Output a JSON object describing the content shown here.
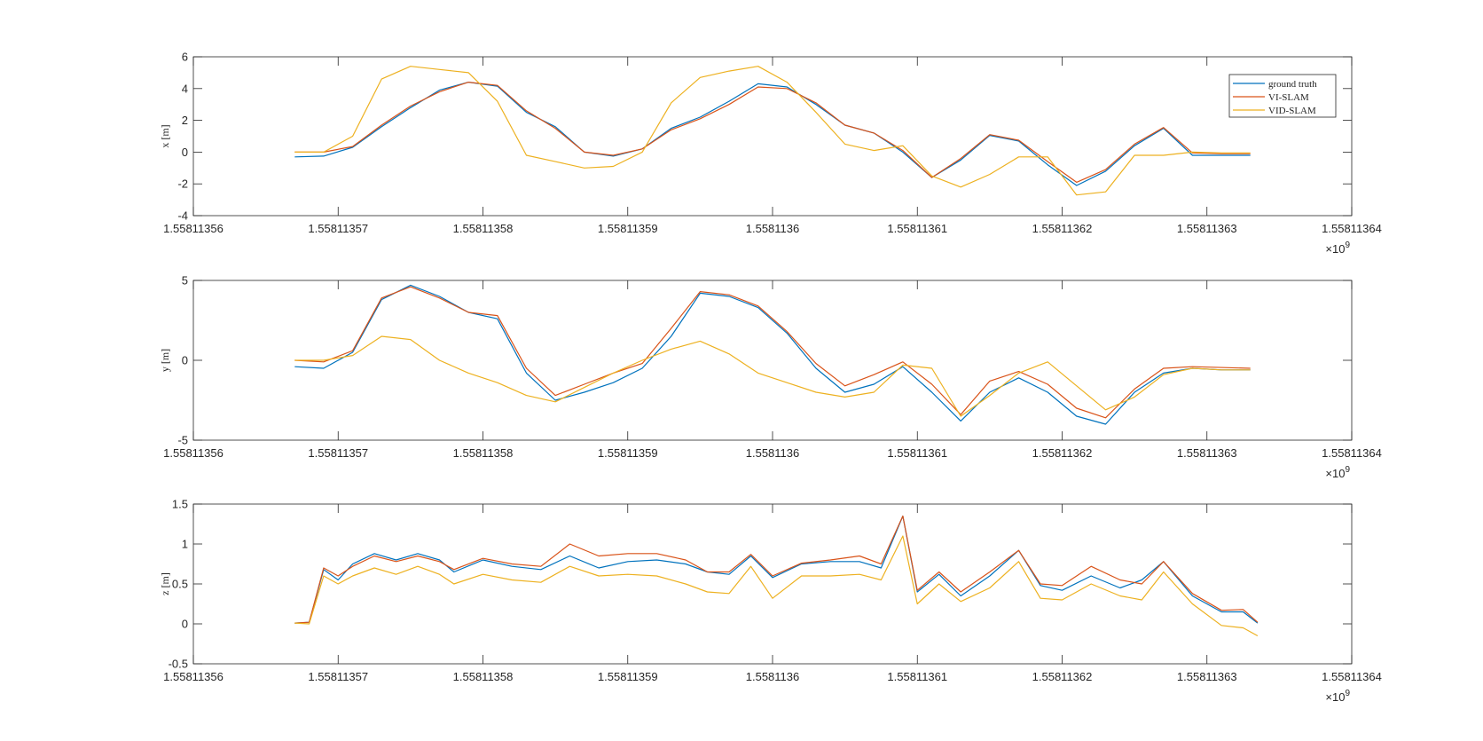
{
  "figure": {
    "colors": {
      "ground_truth": "#0072BD",
      "vi_slam": "#D95319",
      "vid_slam": "#EDB120",
      "axes": "#262626"
    }
  },
  "legend": {
    "entries": [
      "ground truth",
      "VI-SLAM",
      "VID-SLAM"
    ],
    "placement": "top-right of first subplot"
  },
  "chart_data": [
    {
      "type": "line",
      "ylabel": "x [m]",
      "xlim": [
        1.55811356,
        1.55811364
      ],
      "ylim": [
        -4,
        6
      ],
      "grid": false,
      "x_exponent": "×10",
      "x_exponent_power": "9",
      "x_ticks": [
        1.55811356,
        1.55811357,
        1.55811358,
        1.55811359,
        1.5581136,
        1.55811361,
        1.55811362,
        1.55811363,
        1.55811364
      ],
      "x_tick_labels": [
        "1.55811356",
        "1.55811357",
        "1.55811358",
        "1.55811359",
        "1.5581136",
        "1.55811361",
        "1.55811362",
        "1.55811363",
        "1.55811364"
      ],
      "y_ticks": [
        -4,
        -2,
        0,
        2,
        4,
        6
      ],
      "y_tick_labels": [
        "-4",
        "-2",
        "0",
        "2",
        "4",
        "6"
      ],
      "series": [
        {
          "name": "ground truth",
          "x": [
            1.558113567,
            1.558113569,
            1.558113571,
            1.558113573,
            1.558113575,
            1.558113577,
            1.558113579,
            1.558113581,
            1.558113583,
            1.558113585,
            1.558113587,
            1.558113589,
            1.558113591,
            1.558113593,
            1.558113595,
            1.558113597,
            1.558113599,
            1.558113601,
            1.558113603,
            1.558113605,
            1.558113607,
            1.558113609,
            1.558113611,
            1.558113613,
            1.558113615,
            1.558113617,
            1.558113619,
            1.558113621,
            1.558113623,
            1.558113625,
            1.558113627,
            1.558113629,
            1.558113631,
            1.558113633
          ],
          "y": [
            -0.3,
            -0.25,
            0.3,
            1.6,
            2.8,
            3.9,
            4.4,
            4.15,
            2.5,
            1.6,
            0.0,
            -0.25,
            0.2,
            1.5,
            2.2,
            3.2,
            4.3,
            4.1,
            3.0,
            1.7,
            1.2,
            0.0,
            -1.6,
            -0.5,
            1.05,
            0.7,
            -0.8,
            -2.1,
            -1.2,
            0.4,
            1.5,
            -0.2,
            -0.2,
            -0.2
          ]
        },
        {
          "name": "VI-SLAM",
          "x": [
            1.558113567,
            1.558113569,
            1.558113571,
            1.558113573,
            1.558113575,
            1.558113577,
            1.558113579,
            1.558113581,
            1.558113583,
            1.558113585,
            1.558113587,
            1.558113589,
            1.558113591,
            1.558113593,
            1.558113595,
            1.558113597,
            1.558113599,
            1.558113601,
            1.558113603,
            1.558113605,
            1.558113607,
            1.558113609,
            1.558113611,
            1.558113613,
            1.558113615,
            1.558113617,
            1.558113619,
            1.558113621,
            1.558113623,
            1.558113625,
            1.558113627,
            1.558113629,
            1.558113631,
            1.558113633
          ],
          "y": [
            0.0,
            0.0,
            0.35,
            1.7,
            2.9,
            3.8,
            4.4,
            4.2,
            2.6,
            1.5,
            0.0,
            -0.2,
            0.2,
            1.4,
            2.1,
            3.0,
            4.1,
            4.0,
            3.1,
            1.7,
            1.2,
            0.1,
            -1.6,
            -0.4,
            1.1,
            0.75,
            -0.6,
            -1.9,
            -1.1,
            0.5,
            1.55,
            -0.05,
            -0.1,
            -0.1
          ]
        },
        {
          "name": "VID-SLAM",
          "x": [
            1.558113567,
            1.558113569,
            1.558113571,
            1.558113573,
            1.558113575,
            1.558113577,
            1.558113579,
            1.558113581,
            1.558113583,
            1.558113585,
            1.558113587,
            1.558113589,
            1.558113591,
            1.558113593,
            1.558113595,
            1.558113597,
            1.558113599,
            1.558113601,
            1.558113603,
            1.558113605,
            1.558113607,
            1.558113609,
            1.558113611,
            1.558113613,
            1.558113615,
            1.558113617,
            1.558113619,
            1.558113621,
            1.558113623,
            1.558113625,
            1.558113627,
            1.558113629,
            1.558113631,
            1.558113633
          ],
          "y": [
            0.0,
            0.0,
            1.0,
            4.6,
            5.4,
            5.2,
            5.0,
            3.2,
            -0.2,
            -0.6,
            -1.0,
            -0.9,
            0.0,
            3.1,
            4.7,
            5.1,
            5.4,
            4.4,
            2.5,
            0.5,
            0.1,
            0.4,
            -1.5,
            -2.2,
            -1.4,
            -0.3,
            -0.3,
            -2.7,
            -2.5,
            -0.2,
            -0.2,
            0.0,
            -0.05,
            -0.05
          ]
        }
      ]
    },
    {
      "type": "line",
      "ylabel": "y [m]",
      "xlim": [
        1.55811356,
        1.55811364
      ],
      "ylim": [
        -5,
        5
      ],
      "grid": false,
      "x_exponent": "×10",
      "x_exponent_power": "9",
      "x_ticks": [
        1.55811356,
        1.55811357,
        1.55811358,
        1.55811359,
        1.5581136,
        1.55811361,
        1.55811362,
        1.55811363,
        1.55811364
      ],
      "x_tick_labels": [
        "1.55811356",
        "1.55811357",
        "1.55811358",
        "1.55811359",
        "1.5581136",
        "1.55811361",
        "1.55811362",
        "1.55811363",
        "1.55811364"
      ],
      "y_ticks": [
        -5,
        0,
        5
      ],
      "y_tick_labels": [
        "-5",
        "0",
        "5"
      ],
      "series": [
        {
          "name": "ground truth",
          "x": [
            1.558113567,
            1.558113569,
            1.558113571,
            1.558113573,
            1.558113575,
            1.558113577,
            1.558113579,
            1.558113581,
            1.558113583,
            1.558113585,
            1.558113587,
            1.558113589,
            1.558113591,
            1.558113593,
            1.558113595,
            1.558113597,
            1.558113599,
            1.558113601,
            1.558113603,
            1.558113605,
            1.558113607,
            1.558113609,
            1.558113611,
            1.558113613,
            1.558113615,
            1.558113617,
            1.558113619,
            1.558113621,
            1.558113623,
            1.558113625,
            1.558113627,
            1.558113629,
            1.558113631,
            1.558113633
          ],
          "y": [
            -0.4,
            -0.5,
            0.5,
            3.8,
            4.7,
            4.0,
            3.0,
            2.6,
            -0.8,
            -2.5,
            -2.0,
            -1.4,
            -0.5,
            1.5,
            4.2,
            4.0,
            3.3,
            1.7,
            -0.5,
            -2.0,
            -1.5,
            -0.4,
            -2.0,
            -3.8,
            -2.0,
            -1.1,
            -2.0,
            -3.5,
            -4.0,
            -2.0,
            -0.8,
            -0.5,
            -0.6,
            -0.6
          ]
        },
        {
          "name": "VI-SLAM",
          "x": [
            1.558113567,
            1.558113569,
            1.558113571,
            1.558113573,
            1.558113575,
            1.558113577,
            1.558113579,
            1.558113581,
            1.558113583,
            1.558113585,
            1.558113587,
            1.558113589,
            1.558113591,
            1.558113593,
            1.558113595,
            1.558113597,
            1.558113599,
            1.558113601,
            1.558113603,
            1.558113605,
            1.558113607,
            1.558113609,
            1.558113611,
            1.558113613,
            1.558113615,
            1.558113617,
            1.558113619,
            1.558113621,
            1.558113623,
            1.558113625,
            1.558113627,
            1.558113629,
            1.558113633
          ],
          "y": [
            0.0,
            -0.1,
            0.6,
            3.9,
            4.6,
            3.9,
            3.0,
            2.8,
            -0.5,
            -2.2,
            -1.5,
            -0.8,
            -0.2,
            2.0,
            4.3,
            4.1,
            3.4,
            1.8,
            -0.2,
            -1.6,
            -0.9,
            -0.1,
            -1.5,
            -3.4,
            -1.3,
            -0.7,
            -1.5,
            -3.0,
            -3.6,
            -1.8,
            -0.5,
            -0.4,
            -0.5
          ]
        },
        {
          "name": "VID-SLAM",
          "x": [
            1.558113567,
            1.558113569,
            1.558113571,
            1.558113573,
            1.558113575,
            1.558113577,
            1.558113579,
            1.558113581,
            1.558113583,
            1.558113585,
            1.558113587,
            1.558113589,
            1.558113591,
            1.558113593,
            1.558113595,
            1.558113597,
            1.558113599,
            1.558113601,
            1.558113603,
            1.558113605,
            1.558113607,
            1.558113609,
            1.558113611,
            1.558113613,
            1.558113615,
            1.558113617,
            1.558113619,
            1.558113621,
            1.558113623,
            1.558113625,
            1.558113627,
            1.558113629,
            1.558113631,
            1.558113633
          ],
          "y": [
            0.0,
            0.0,
            0.3,
            1.5,
            1.3,
            0.0,
            -0.8,
            -1.4,
            -2.2,
            -2.6,
            -1.7,
            -0.8,
            0.0,
            0.7,
            1.2,
            0.4,
            -0.8,
            -1.4,
            -2.0,
            -2.3,
            -2.0,
            -0.3,
            -0.5,
            -3.5,
            -2.2,
            -0.8,
            -0.1,
            -1.6,
            -3.1,
            -2.3,
            -0.9,
            -0.5,
            -0.6,
            -0.6
          ]
        }
      ]
    },
    {
      "type": "line",
      "ylabel": "z [m]",
      "xlim": [
        1.55811356,
        1.55811364
      ],
      "ylim": [
        -0.5,
        1.5
      ],
      "grid": false,
      "x_exponent": "×10",
      "x_exponent_power": "9",
      "x_ticks": [
        1.55811356,
        1.55811357,
        1.55811358,
        1.55811359,
        1.5581136,
        1.55811361,
        1.55811362,
        1.55811363,
        1.55811364
      ],
      "x_tick_labels": [
        "1.55811356",
        "1.55811357",
        "1.55811358",
        "1.55811359",
        "1.5581136",
        "1.55811361",
        "1.55811362",
        "1.55811363",
        "1.55811364"
      ],
      "y_ticks": [
        -0.5,
        0,
        0.5,
        1,
        1.5
      ],
      "y_tick_labels": [
        "-0.5",
        "0",
        "0.5",
        "1",
        "1.5"
      ],
      "series": [
        {
          "name": "ground truth",
          "x": [
            1.558113567,
            1.558113568,
            1.558113569,
            1.55811357,
            1.558113571,
            1.5581135725,
            1.558113574,
            1.5581135755,
            1.558113577,
            1.558113578,
            1.55811358,
            1.558113582,
            1.558113584,
            1.558113586,
            1.558113588,
            1.55811359,
            1.558113592,
            1.558113594,
            1.5581135955,
            1.558113597,
            1.5581135985,
            1.5581136,
            1.558113602,
            1.558113604,
            1.558113606,
            1.5581136075,
            1.558113609,
            1.55811361,
            1.5581136115,
            1.558113613,
            1.558113615,
            1.558113617,
            1.5581136185,
            1.55811362,
            1.558113622,
            1.558113624,
            1.5581136255,
            1.558113627,
            1.558113629,
            1.558113631,
            1.5581136325,
            1.5581136335
          ],
          "y": [
            0.01,
            0.02,
            0.68,
            0.55,
            0.75,
            0.88,
            0.8,
            0.88,
            0.8,
            0.65,
            0.8,
            0.72,
            0.68,
            0.85,
            0.7,
            0.78,
            0.8,
            0.75,
            0.65,
            0.62,
            0.85,
            0.58,
            0.75,
            0.78,
            0.78,
            0.7,
            1.35,
            0.4,
            0.62,
            0.35,
            0.6,
            0.92,
            0.48,
            0.42,
            0.6,
            0.45,
            0.55,
            0.78,
            0.35,
            0.15,
            0.15,
            0.01
          ]
        },
        {
          "name": "VI-SLAM",
          "x": [
            1.558113567,
            1.558113568,
            1.558113569,
            1.55811357,
            1.558113571,
            1.5581135725,
            1.558113574,
            1.5581135755,
            1.558113577,
            1.558113578,
            1.55811358,
            1.558113582,
            1.558113584,
            1.558113586,
            1.558113588,
            1.55811359,
            1.558113592,
            1.558113594,
            1.5581135955,
            1.558113597,
            1.5581135985,
            1.5581136,
            1.558113602,
            1.558113604,
            1.558113606,
            1.5581136075,
            1.558113609,
            1.55811361,
            1.5581136115,
            1.558113613,
            1.558113615,
            1.558113617,
            1.5581136185,
            1.55811362,
            1.558113622,
            1.558113624,
            1.5581136255,
            1.558113627,
            1.558113629,
            1.558113631,
            1.5581136325,
            1.5581136335
          ],
          "y": [
            0.01,
            0.02,
            0.7,
            0.6,
            0.72,
            0.85,
            0.78,
            0.85,
            0.78,
            0.68,
            0.82,
            0.75,
            0.72,
            1.0,
            0.85,
            0.88,
            0.88,
            0.8,
            0.65,
            0.65,
            0.87,
            0.6,
            0.76,
            0.8,
            0.85,
            0.75,
            1.35,
            0.42,
            0.65,
            0.4,
            0.65,
            0.92,
            0.5,
            0.48,
            0.72,
            0.55,
            0.5,
            0.78,
            0.38,
            0.17,
            0.18,
            0.02
          ]
        },
        {
          "name": "VID-SLAM",
          "x": [
            1.558113567,
            1.558113568,
            1.558113569,
            1.55811357,
            1.558113571,
            1.5581135725,
            1.558113574,
            1.5581135755,
            1.558113577,
            1.558113578,
            1.55811358,
            1.558113582,
            1.558113584,
            1.558113586,
            1.558113588,
            1.55811359,
            1.558113592,
            1.558113594,
            1.5581135955,
            1.558113597,
            1.5581135985,
            1.5581136,
            1.558113602,
            1.558113604,
            1.558113606,
            1.5581136075,
            1.558113609,
            1.55811361,
            1.5581136115,
            1.558113613,
            1.558113615,
            1.558113617,
            1.5581136185,
            1.55811362,
            1.558113622,
            1.558113624,
            1.5581136255,
            1.558113627,
            1.558113629,
            1.558113631,
            1.5581136325,
            1.5581136335
          ],
          "y": [
            0.01,
            0.0,
            0.6,
            0.5,
            0.6,
            0.7,
            0.62,
            0.72,
            0.62,
            0.5,
            0.62,
            0.55,
            0.52,
            0.72,
            0.6,
            0.62,
            0.6,
            0.5,
            0.4,
            0.38,
            0.72,
            0.32,
            0.6,
            0.6,
            0.62,
            0.55,
            1.1,
            0.25,
            0.5,
            0.28,
            0.45,
            0.78,
            0.32,
            0.3,
            0.5,
            0.35,
            0.3,
            0.65,
            0.25,
            -0.02,
            -0.05,
            -0.15
          ]
        }
      ]
    }
  ]
}
